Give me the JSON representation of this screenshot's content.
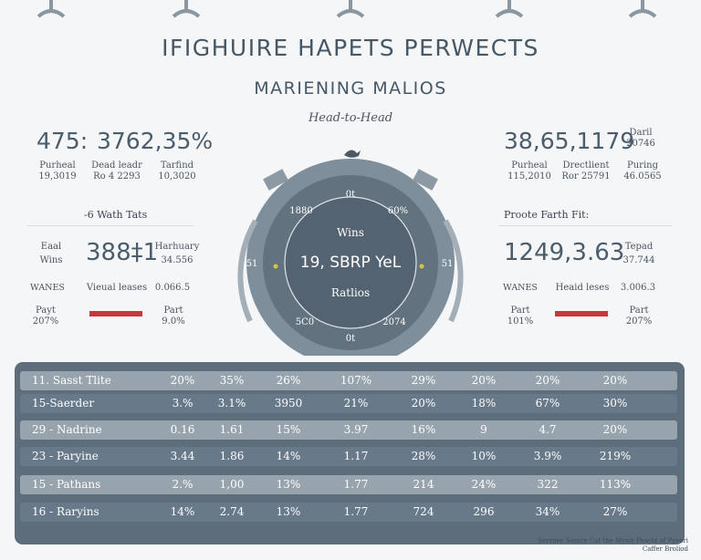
{
  "header": {
    "title": "IFIGHUIRE HAPETS PERWECTS",
    "subtitle": "MARIENING MALIOS",
    "tagline": "Head-to-Head"
  },
  "left": {
    "headline_a": "475:",
    "headline_b": "3762,35%",
    "stats": [
      {
        "label": "Purheal",
        "value": "19,3019"
      },
      {
        "label": "Dead leadr",
        "value": "Ro 4 2293"
      },
      {
        "label": "Tarfind",
        "value": "10,3020"
      }
    ],
    "section": "-6 Wath Tats",
    "feature_left_1": "Eaal",
    "feature_left_2": "Wins",
    "feature_value": "388‡1",
    "feature_right_1": "Harhuary",
    "feature_right_2": "34.556",
    "row2_a": "WANES",
    "row2_b": "Vieual leases",
    "row2_c": "0.066.5",
    "row3_a1": "Payt",
    "row3_a2": "207%",
    "row3_c1": "Part",
    "row3_c2": "9.0%"
  },
  "right": {
    "headline": "38,65,1179",
    "corner_1": "Daril",
    "corner_2": "20746",
    "stats": [
      {
        "label": "Purheal",
        "value": "115,2010"
      },
      {
        "label": "Drectlient",
        "value": "Ror 25791"
      },
      {
        "label": "Puring",
        "value": "46.0565"
      }
    ],
    "section": "Proote Farth Fit:",
    "feature_value": "1249,3.63",
    "feature_right_1": "Tepad",
    "feature_right_2": "37.744",
    "row2_a": "WANES",
    "row2_b": "Heaid leses",
    "row2_c": "3.006.3",
    "row3_a1": "Part",
    "row3_a2": "101%",
    "row3_c1": "Part",
    "row3_c2": "207%"
  },
  "dial": {
    "top_label": "0t",
    "bottom_label": "0t",
    "left_label": "51",
    "right_label": "51",
    "upper_left": "1880",
    "upper_right": "60%",
    "lower_left": "5C0",
    "lower_right": "2074",
    "wins": "Wins",
    "center": "19, SBRP YeL",
    "ratios": "Ratlios"
  },
  "table": {
    "rows": [
      {
        "name": "11. Sasst Tlite",
        "values": [
          "20%",
          "35%",
          "26%",
          "107%",
          "29%",
          "20%",
          "20%",
          "20%"
        ]
      },
      {
        "name": "15-Saerder",
        "values": [
          "3.%",
          "3.1%",
          "3950",
          "21%",
          "20%",
          "18%",
          "67%",
          "30%"
        ]
      },
      {
        "name": "29 - Nadrine",
        "values": [
          "0.16",
          "1.61",
          "15%",
          "3.97",
          "16%",
          "9",
          "4.7",
          "20%"
        ]
      },
      {
        "name": "23 - Paryine",
        "values": [
          "3.44",
          "1.86",
          "14%",
          "1.17",
          "28%",
          "10%",
          "3.9%",
          "219%"
        ]
      },
      {
        "name": "15 - Pathans",
        "values": [
          "2.%",
          "1,00",
          "13%",
          "1.77",
          "214",
          "24%",
          "322",
          "113%"
        ]
      },
      {
        "name": "16 - Raryins",
        "values": [
          "14%",
          "2.74",
          "13%",
          "1.77",
          "724",
          "296",
          "34%",
          "27%"
        ]
      }
    ]
  },
  "footer": {
    "line1": "Sersnec Senice Cat the Mysly Peacts of Pyvori",
    "line2": "Caffer Broliod"
  },
  "colors": {
    "accent_red": "#c9363b",
    "dial_outer": "#7c8c99",
    "dial_inner": "#5f707f",
    "panel": "#5d6d7b"
  }
}
